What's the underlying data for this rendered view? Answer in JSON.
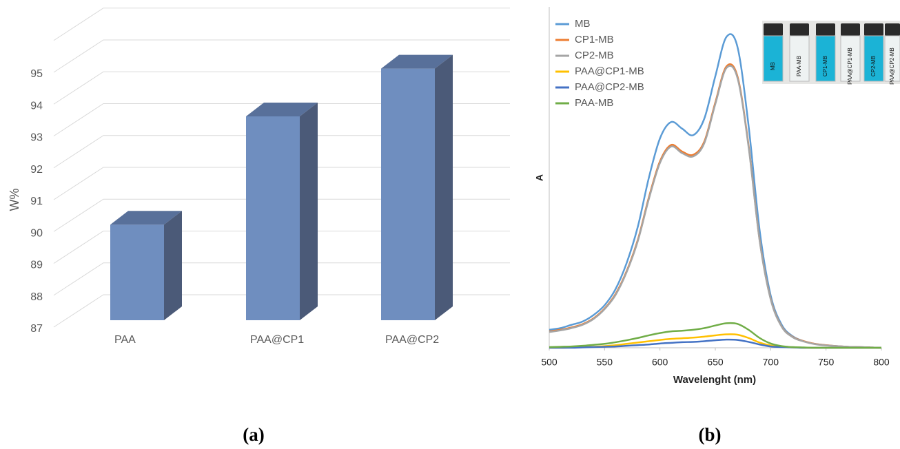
{
  "chart_data": [
    {
      "type": "bar3d",
      "panel_label": "(a)",
      "y_label": "W%",
      "categories": [
        "PAA",
        "PAA@CP1",
        "PAA@CP2"
      ],
      "values": [
        90.0,
        93.4,
        94.9
      ],
      "color": "#6f8ebf",
      "ylim": [
        87,
        96
      ],
      "yticks": [
        87,
        88,
        89,
        90,
        91,
        92,
        93,
        94,
        95
      ],
      "grid": true
    },
    {
      "type": "line",
      "panel_label": "(b)",
      "x_label": "Wavelenght (nm)",
      "y_label": "A",
      "legend": "upper left",
      "x": [
        500,
        510,
        520,
        530,
        540,
        550,
        560,
        570,
        580,
        590,
        600,
        610,
        620,
        630,
        640,
        650,
        660,
        670,
        680,
        690,
        700,
        710,
        720,
        730,
        740,
        750,
        760,
        770,
        780,
        790,
        800
      ],
      "xlim": [
        500,
        800
      ],
      "xticks": [
        500,
        550,
        600,
        650,
        700,
        750,
        800
      ],
      "ylim": [
        0,
        1
      ],
      "series": [
        {
          "name": "MB",
          "color": "#5b9bd5",
          "values": [
            0.055,
            0.06,
            0.07,
            0.08,
            0.1,
            0.13,
            0.18,
            0.26,
            0.37,
            0.52,
            0.64,
            0.69,
            0.67,
            0.65,
            0.7,
            0.83,
            0.95,
            0.92,
            0.68,
            0.36,
            0.16,
            0.07,
            0.035,
            0.02,
            0.012,
            0.008,
            0.005,
            0.003,
            0.002,
            0.001,
            0
          ]
        },
        {
          "name": "CP1-MB",
          "color": "#ed7d31",
          "values": [
            0.05,
            0.055,
            0.062,
            0.072,
            0.09,
            0.12,
            0.165,
            0.235,
            0.33,
            0.46,
            0.57,
            0.62,
            0.6,
            0.59,
            0.63,
            0.75,
            0.86,
            0.83,
            0.62,
            0.33,
            0.15,
            0.065,
            0.033,
            0.02,
            0.012,
            0.008,
            0.005,
            0.003,
            0.002,
            0.001,
            0
          ]
        },
        {
          "name": "CP2-MB",
          "color": "#a5a5a5",
          "values": [
            0.048,
            0.053,
            0.06,
            0.07,
            0.088,
            0.118,
            0.162,
            0.232,
            0.326,
            0.455,
            0.565,
            0.615,
            0.595,
            0.585,
            0.625,
            0.745,
            0.855,
            0.825,
            0.615,
            0.328,
            0.148,
            0.064,
            0.032,
            0.019,
            0.011,
            0.007,
            0.005,
            0.003,
            0.002,
            0.001,
            0
          ]
        },
        {
          "name": "PAA@CP1-MB",
          "color": "#ffc000",
          "values": [
            0,
            0,
            0.001,
            0.002,
            0.003,
            0.005,
            0.008,
            0.012,
            0.016,
            0.02,
            0.024,
            0.027,
            0.029,
            0.031,
            0.034,
            0.038,
            0.041,
            0.04,
            0.03,
            0.016,
            0.007,
            0.003,
            0.001,
            0,
            0,
            0,
            0,
            0,
            0,
            0,
            0
          ]
        },
        {
          "name": "PAA@CP2-MB",
          "color": "#4472c4",
          "values": [
            0,
            0,
            0,
            0.001,
            0.002,
            0.003,
            0.004,
            0.006,
            0.008,
            0.01,
            0.013,
            0.015,
            0.017,
            0.018,
            0.02,
            0.023,
            0.025,
            0.024,
            0.018,
            0.01,
            0.004,
            0.002,
            0.001,
            0,
            0,
            0,
            0,
            0,
            0,
            0,
            0
          ]
        },
        {
          "name": "PAA-MB",
          "color": "#70ad47",
          "values": [
            0.002,
            0.003,
            0.004,
            0.006,
            0.009,
            0.012,
            0.017,
            0.023,
            0.03,
            0.038,
            0.045,
            0.05,
            0.052,
            0.055,
            0.06,
            0.068,
            0.075,
            0.073,
            0.055,
            0.03,
            0.013,
            0.005,
            0.002,
            0.001,
            0,
            0,
            0,
            0,
            0,
            0,
            0
          ]
        }
      ]
    }
  ],
  "inset_vials": [
    "MB",
    "PAA-MB",
    "CP1-MB",
    "PAA@CP1-MB",
    "CP2-MB",
    "PAA@CP2-MB"
  ]
}
